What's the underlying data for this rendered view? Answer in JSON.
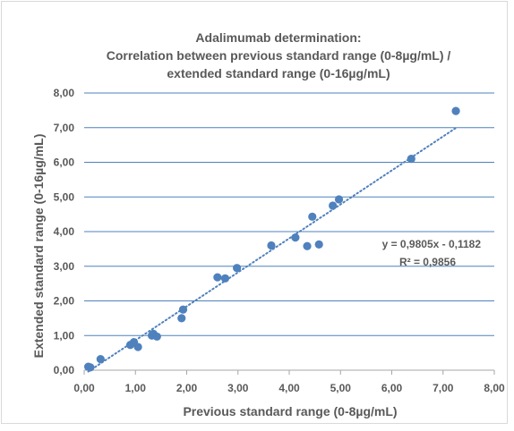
{
  "chart_data": {
    "type": "scatter",
    "title_lines": [
      "Adalimumab determination:",
      "Correlation between previous standard  range (0-8µg/mL) /",
      "extended standard range (0-16µg/mL)"
    ],
    "xlabel": "Previous standard  range (0-8µg/mL)",
    "ylabel": "Extended standard  range (0-16µg/mL)",
    "xlim": [
      0,
      8
    ],
    "ylim": [
      0,
      8
    ],
    "x_ticks": [
      "0,00",
      "1,00",
      "2,00",
      "3,00",
      "4,00",
      "5,00",
      "6,00",
      "7,00",
      "8,00"
    ],
    "y_ticks": [
      "0,00",
      "1,00",
      "2,00",
      "3,00",
      "4,00",
      "5,00",
      "6,00",
      "7,00",
      "8,00"
    ],
    "grid": "horizontal",
    "series": [
      {
        "color": "#4f81bd",
        "points": [
          [
            0.08,
            0.1
          ],
          [
            0.12,
            0.08
          ],
          [
            0.32,
            0.32
          ],
          [
            0.9,
            0.73
          ],
          [
            0.97,
            0.81
          ],
          [
            1.05,
            0.67
          ],
          [
            1.32,
            1.0
          ],
          [
            1.35,
            1.05
          ],
          [
            1.42,
            0.97
          ],
          [
            1.9,
            1.5
          ],
          [
            1.93,
            1.75
          ],
          [
            2.6,
            2.68
          ],
          [
            2.75,
            2.65
          ],
          [
            2.98,
            2.95
          ],
          [
            3.65,
            3.6
          ],
          [
            4.12,
            3.83
          ],
          [
            4.35,
            3.58
          ],
          [
            4.45,
            4.43
          ],
          [
            4.58,
            3.63
          ],
          [
            4.85,
            4.75
          ],
          [
            4.97,
            4.93
          ],
          [
            6.38,
            6.1
          ],
          [
            7.25,
            7.48
          ]
        ]
      }
    ],
    "trendline": {
      "type": "linear",
      "slope": 0.9805,
      "intercept": -0.1182,
      "x_range": [
        0.08,
        7.25
      ],
      "color": "#4f81bd",
      "equation_label": "y = 0,9805x - 0,1182",
      "r2_label": "R² = 0,9856"
    }
  }
}
